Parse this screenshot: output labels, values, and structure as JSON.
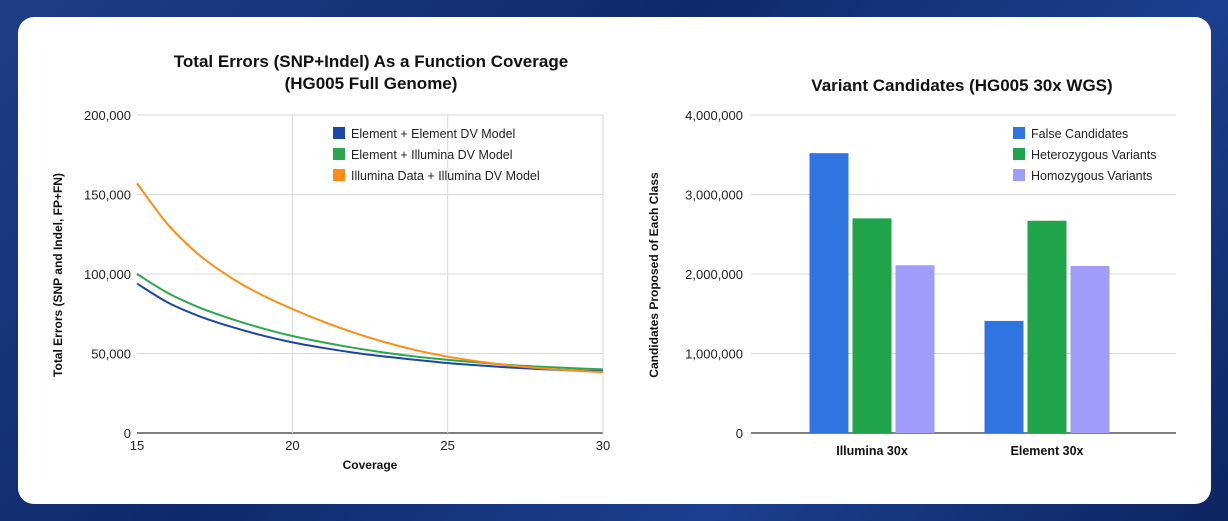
{
  "colors": {
    "background": "#1a3a82",
    "card": "#ffffff"
  },
  "chart_data": [
    {
      "type": "line",
      "title": [
        "Total Errors (SNP+Indel) As a Function Coverage",
        "(HG005 Full Genome)"
      ],
      "xlabel": "Coverage",
      "ylabel": "Total Errors (SNP and Indel, FP+FN)",
      "xlim": [
        15,
        30
      ],
      "ylim": [
        0,
        200000
      ],
      "x_ticks": [
        15,
        20,
        25,
        30
      ],
      "x_tick_labels": [
        "15",
        "20",
        "25",
        "30"
      ],
      "y_ticks": [
        0,
        50000,
        100000,
        150000,
        200000
      ],
      "y_tick_labels": [
        "0",
        "50,000",
        "100,000",
        "150,000",
        "200,000"
      ],
      "grid": true,
      "legend_position": "top-right",
      "x": [
        15,
        16,
        17,
        18,
        19,
        20,
        21,
        22,
        23,
        24,
        25,
        26,
        27,
        28,
        29,
        30
      ],
      "series": [
        {
          "name": "Element + Element DV Model",
          "color": "#1a47a6",
          "values": [
            94000,
            82000,
            73500,
            67000,
            61500,
            57000,
            53500,
            50500,
            48000,
            46000,
            44000,
            42500,
            41200,
            40200,
            39400,
            38800
          ]
        },
        {
          "name": "Element + Illumina DV Model",
          "color": "#2ca84c",
          "values": [
            100000,
            88000,
            79000,
            72000,
            66000,
            61000,
            57000,
            53500,
            50500,
            48000,
            46000,
            44300,
            42800,
            41700,
            40800,
            40000
          ]
        },
        {
          "name": "Illumina Data + Illumina DV Model",
          "color": "#ff8c14",
          "values": [
            157000,
            131000,
            112000,
            98000,
            87000,
            78000,
            70000,
            63000,
            57000,
            52000,
            48000,
            45000,
            42500,
            40700,
            39300,
            38300
          ]
        }
      ]
    },
    {
      "type": "bar",
      "title": "Variant Candidates (HG005 30x WGS)",
      "xlabel": "",
      "ylabel": "Candidates Proposed of Each Class",
      "ylim": [
        0,
        4000000
      ],
      "y_ticks": [
        0,
        1000000,
        2000000,
        3000000,
        4000000
      ],
      "y_tick_labels": [
        "0",
        "1,000,000",
        "2,000,000",
        "3,000,000",
        "4,000,000"
      ],
      "grid": true,
      "legend_position": "top-right",
      "categories": [
        "Illumina 30x",
        "Element 30x"
      ],
      "series": [
        {
          "name": "False Candidates",
          "color": "#2f74df",
          "values": [
            3520000,
            1410000
          ]
        },
        {
          "name": "Heterozygous Variants",
          "color": "#20a44a",
          "values": [
            2700000,
            2670000
          ]
        },
        {
          "name": "Homozygous Variants",
          "color": "#a09cf9",
          "values": [
            2110000,
            2100000
          ]
        }
      ]
    }
  ]
}
